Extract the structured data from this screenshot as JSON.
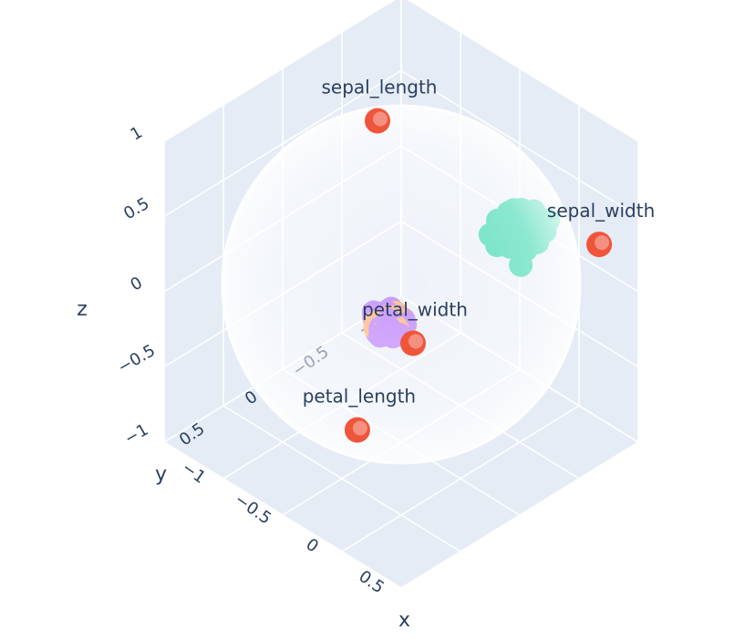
{
  "chart_data": {
    "type": "scatter3d",
    "title": "",
    "axes": {
      "x": {
        "title": "x",
        "range": [
          -1,
          1
        ],
        "ticks": [
          "−1",
          "−0.5",
          "0",
          "0.5"
        ]
      },
      "y": {
        "title": "y",
        "range": [
          -1,
          1
        ],
        "ticks": [
          "−1",
          "−0.5",
          "0",
          "0.5"
        ]
      },
      "z": {
        "title": "z",
        "range": [
          -1,
          1
        ],
        "ticks": [
          "−1",
          "−0.5",
          "0",
          "0.5",
          "1"
        ]
      }
    },
    "sphere": {
      "radius": 1,
      "opacity": 0.6
    },
    "feature_points": [
      {
        "label": "sepal_length",
        "x": -0.55,
        "y": -0.35,
        "z": 0.7
      },
      {
        "label": "sepal_width",
        "x": 0.82,
        "y": -0.85,
        "z": 0.3
      },
      {
        "label": "petal_width",
        "x": 0.3,
        "y": 0.2,
        "z": -0.1
      },
      {
        "label": "petal_length",
        "x": 0.35,
        "y": 0.72,
        "z": -0.4
      }
    ],
    "series": [
      {
        "color": "#00cc96",
        "center": [
          0.45,
          -0.55,
          0.35
        ],
        "spread": [
          0.12,
          0.12,
          0.08
        ],
        "count": 50
      },
      {
        "color": "#ffa15a",
        "center": [
          0.1,
          0.2,
          -0.05
        ],
        "spread": [
          0.06,
          0.06,
          0.05
        ],
        "count": 50
      },
      {
        "color": "#ab63fa",
        "center": [
          0.12,
          0.22,
          -0.06
        ],
        "spread": [
          0.06,
          0.06,
          0.05
        ],
        "count": 50
      }
    ],
    "colors": {
      "feature": "#ef553b",
      "background": "#e5ecf6",
      "grid": "#ffffff",
      "text": "#2a3f5f"
    }
  }
}
